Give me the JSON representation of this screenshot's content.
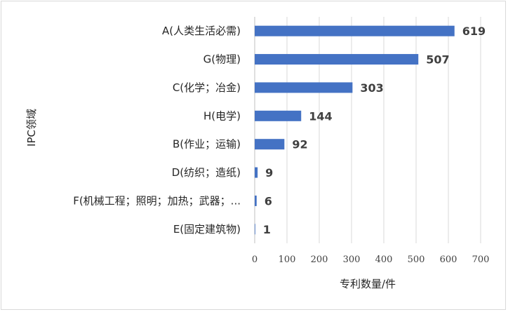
{
  "chart_data": {
    "type": "bar",
    "orientation": "horizontal",
    "categories": [
      "A(人类生活必需)",
      "G(物理)",
      "C(化学；冶金)",
      "H(电学)",
      "B(作业；运输)",
      "D(纺织；造纸)",
      "F(机械工程；照明；加热；武器；...",
      "E(固定建筑物)"
    ],
    "values": [
      619,
      507,
      303,
      144,
      92,
      9,
      6,
      1
    ],
    "xlim": [
      0,
      700
    ],
    "xticks": [
      0,
      100,
      200,
      300,
      400,
      500,
      600,
      700
    ],
    "xlabel": "专利数量/件",
    "ylabel": "IPC领域",
    "grid": "vertical",
    "legend": "none",
    "bar_color": "#4472c4",
    "grid_color": "#d9d9d9"
  }
}
